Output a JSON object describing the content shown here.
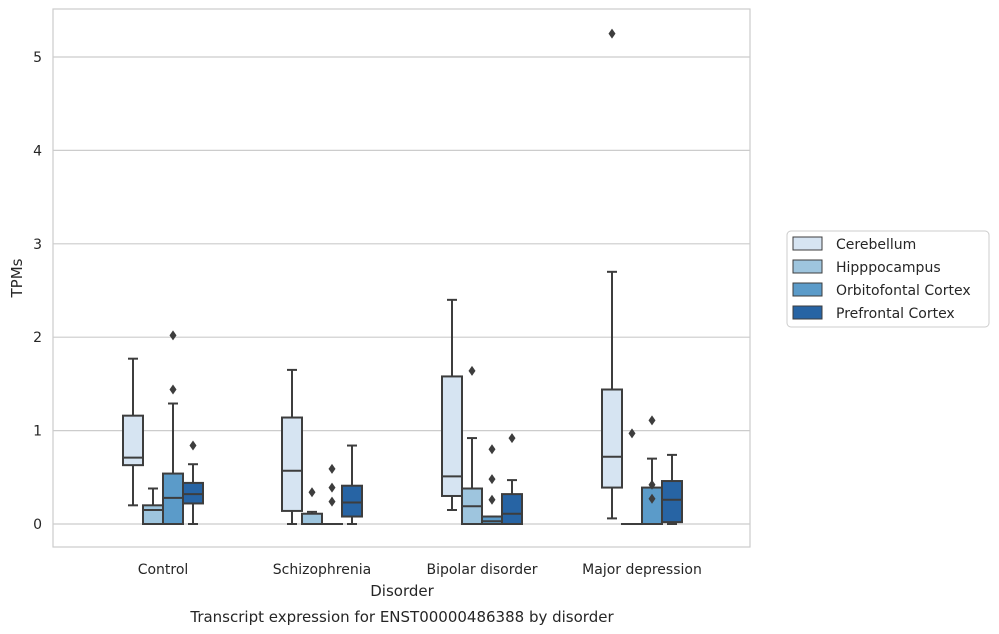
{
  "chart_data": {
    "type": "box",
    "title": "Transcript expression for ENST00000486388 by disorder",
    "xlabel": "Disorder",
    "ylabel": "TPMs",
    "ylim": [
      -0.25,
      5.52
    ],
    "yticks": [
      0,
      1,
      2,
      3,
      4,
      5
    ],
    "grid": true,
    "legend_position": "right",
    "categories": [
      "Control",
      "Schizophrenia",
      "Bipolar disorder",
      "Major depression"
    ],
    "series": [
      {
        "name": "Cerebellum",
        "color": "#d6e4f2",
        "boxes": [
          {
            "whislo": 0.2,
            "q1": 0.63,
            "med": 0.71,
            "q3": 1.16,
            "whishi": 1.77,
            "fliers": []
          },
          {
            "whislo": 0.0,
            "q1": 0.14,
            "med": 0.57,
            "q3": 1.14,
            "whishi": 1.65,
            "fliers": []
          },
          {
            "whislo": 0.15,
            "q1": 0.3,
            "med": 0.51,
            "q3": 1.58,
            "whishi": 2.4,
            "fliers": []
          },
          {
            "whislo": 0.06,
            "q1": 0.39,
            "med": 0.72,
            "q3": 1.44,
            "whishi": 2.7,
            "fliers": [
              5.25
            ]
          }
        ]
      },
      {
        "name": "Hipppocampus",
        "color": "#9ec5de",
        "boxes": [
          {
            "whislo": 0.0,
            "q1": 0.0,
            "med": 0.15,
            "q3": 0.2,
            "whishi": 0.38,
            "fliers": []
          },
          {
            "whislo": 0.0,
            "q1": 0.0,
            "med": 0.0,
            "q3": 0.11,
            "whishi": 0.13,
            "fliers": [
              0.34
            ]
          },
          {
            "whislo": 0.0,
            "q1": 0.0,
            "med": 0.19,
            "q3": 0.38,
            "whishi": 0.92,
            "fliers": [
              1.64
            ]
          },
          {
            "whislo": 0.0,
            "q1": 0.0,
            "med": 0.0,
            "q3": 0.0,
            "whishi": 0.0,
            "fliers": [
              0.97
            ]
          }
        ]
      },
      {
        "name": "Orbitofontal Cortex",
        "color": "#5b9bc9",
        "boxes": [
          {
            "whislo": 0.0,
            "q1": 0.0,
            "med": 0.28,
            "q3": 0.54,
            "whishi": 1.29,
            "fliers": [
              1.44,
              2.02
            ]
          },
          {
            "whislo": 0.0,
            "q1": 0.0,
            "med": 0.0,
            "q3": 0.0,
            "whishi": 0.0,
            "fliers": [
              0.24,
              0.39,
              0.59
            ]
          },
          {
            "whislo": 0.0,
            "q1": 0.0,
            "med": 0.03,
            "q3": 0.08,
            "whishi": 0.08,
            "fliers": [
              0.26,
              0.48,
              0.8
            ]
          },
          {
            "whislo": 0.0,
            "q1": 0.0,
            "med": 0.0,
            "q3": 0.39,
            "whishi": 0.7,
            "fliers": [
              0.27,
              0.42,
              1.11
            ]
          }
        ]
      },
      {
        "name": "Prefrontal Cortex",
        "color": "#2764a4",
        "boxes": [
          {
            "whislo": 0.0,
            "q1": 0.22,
            "med": 0.32,
            "q3": 0.44,
            "whishi": 0.64,
            "fliers": [
              0.84
            ]
          },
          {
            "whislo": 0.0,
            "q1": 0.08,
            "med": 0.23,
            "q3": 0.41,
            "whishi": 0.84,
            "fliers": []
          },
          {
            "whislo": 0.0,
            "q1": 0.0,
            "med": 0.11,
            "q3": 0.32,
            "whishi": 0.47,
            "fliers": [
              0.92
            ]
          },
          {
            "whislo": 0.0,
            "q1": 0.02,
            "med": 0.26,
            "q3": 0.46,
            "whishi": 0.74,
            "fliers": []
          }
        ]
      }
    ]
  }
}
